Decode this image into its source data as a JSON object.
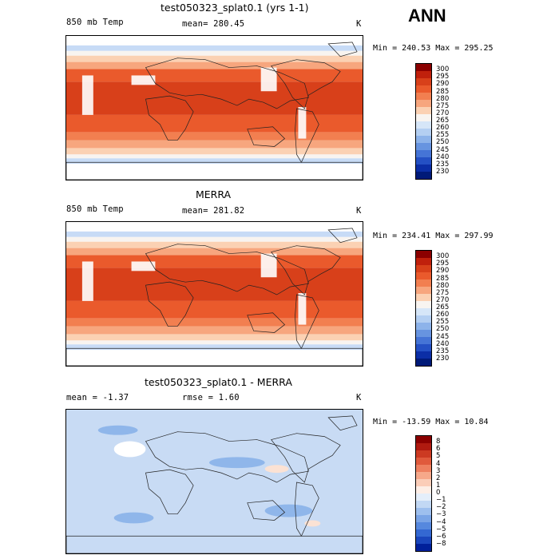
{
  "season": "ANN",
  "panels": [
    {
      "title": "test050323_splat0.1 (yrs 1-1)",
      "left_label": "850 mb Temp",
      "center_label": "mean= 280.45",
      "units": "K",
      "minmax": "Min = 240.53 Max = 295.25",
      "colorbar": {
        "ticks": [
          "300",
          "295",
          "290",
          "285",
          "280",
          "275",
          "270",
          "265",
          "260",
          "255",
          "250",
          "245",
          "240",
          "235",
          "230"
        ],
        "colors": [
          "#8b0000",
          "#c0200c",
          "#d8401a",
          "#ea5a2c",
          "#f27f50",
          "#f7a67e",
          "#fbd1b3",
          "#f8f4f0",
          "#d6e6f8",
          "#b4cff2",
          "#8db3ea",
          "#6794e0",
          "#4574d6",
          "#2450c4",
          "#0b2ea6",
          "#001a78"
        ]
      },
      "map_style": "warm"
    },
    {
      "title": "MERRA",
      "left_label": "850 mb Temp",
      "center_label": "mean= 281.82",
      "units": "K",
      "minmax": "Min = 234.41 Max = 297.99",
      "colorbar": {
        "ticks": [
          "300",
          "295",
          "290",
          "285",
          "280",
          "275",
          "270",
          "265",
          "260",
          "255",
          "250",
          "245",
          "240",
          "235",
          "230"
        ],
        "colors": [
          "#8b0000",
          "#c0200c",
          "#d8401a",
          "#ea5a2c",
          "#f27f50",
          "#f7a67e",
          "#fbd1b3",
          "#f8f4f0",
          "#d6e6f8",
          "#b4cff2",
          "#8db3ea",
          "#6794e0",
          "#4574d6",
          "#2450c4",
          "#0b2ea6",
          "#001a78"
        ]
      },
      "map_style": "warm"
    },
    {
      "title": "test050323_splat0.1 - MERRA",
      "left_label": "mean =  -1.37",
      "center_label": "rmse =   1.60",
      "units": "K",
      "minmax": "Min = -13.59 Max =  10.84",
      "colorbar": {
        "ticks": [
          "8",
          "6",
          "5",
          "4",
          "3",
          "2",
          "1",
          "0",
          "−1",
          "−2",
          "−3",
          "−4",
          "−5",
          "−6",
          "−8"
        ],
        "colors": [
          "#8b0000",
          "#b01a10",
          "#cc3a22",
          "#e05a3c",
          "#ee8060",
          "#f6a88a",
          "#fbcdb8",
          "#fdeee6",
          "#e4eefa",
          "#c2d8f4",
          "#9ebfee",
          "#7aa4e6",
          "#5688de",
          "#3468d2",
          "#1a46bc",
          "#00209a"
        ]
      },
      "map_style": "diff"
    }
  ]
}
